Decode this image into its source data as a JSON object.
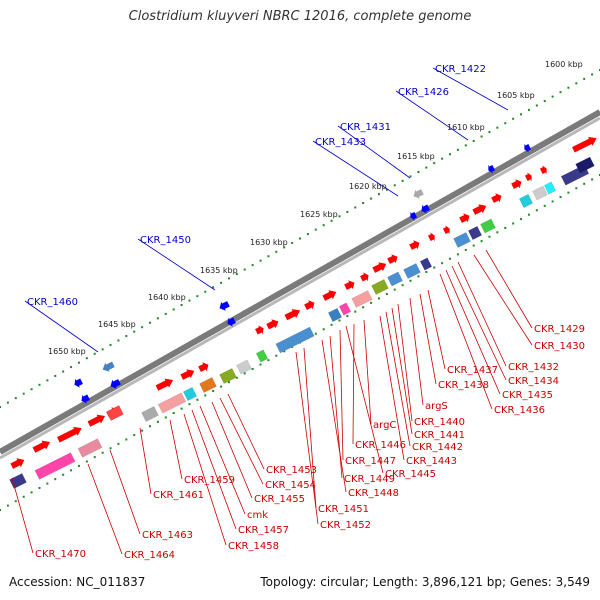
{
  "title": "Clostridium kluyveri NBRC 12016, complete genome",
  "footer": {
    "accession_label": "Accession:",
    "accession": "NC_011837",
    "topology_label": "Topology:",
    "topology": "circular",
    "length_label": "Length:",
    "length": "3,896,121 bp",
    "genes_label": "Genes:",
    "genes": "3,549"
  },
  "colors": {
    "forward_gene": "#ff0000",
    "reverse_gene": "#0000ff",
    "forward_label": "#cc0000",
    "reverse_label": "#0000cc",
    "scale_dots": "#228822",
    "backbone": "#888888"
  },
  "scale": {
    "unit": "kbp",
    "ticks": [
      1600,
      1605,
      1610,
      1615,
      1620,
      1625,
      1630,
      1635,
      1640,
      1645,
      1650
    ]
  },
  "labels_reverse": [
    "CKR_1422",
    "CKR_1426",
    "CKR_1431",
    "CKR_1433",
    "CKR_1450",
    "CKR_1460"
  ],
  "labels_forward": [
    "CKR_1429",
    "CKR_1430",
    "CKR_1432",
    "CKR_1434",
    "CKR_1435",
    "CKR_1436",
    "CKR_1437",
    "CKR_1438",
    "argS",
    "CKR_1440",
    "CKR_1441",
    "CKR_1442",
    "CKR_1443",
    "argC",
    "CKR_1446",
    "CKR_1445",
    "CKR_1447",
    "CKR_1449",
    "CKR_1448",
    "CKR_1453",
    "CKR_1454",
    "CKR_1455",
    "CKR_1451",
    "CKR_1452",
    "CKR_1459",
    "CKR_1461",
    "cmk",
    "CKR_1457",
    "CKR_1458",
    "CKR_1463",
    "CKR_1464",
    "CKR_1470"
  ]
}
